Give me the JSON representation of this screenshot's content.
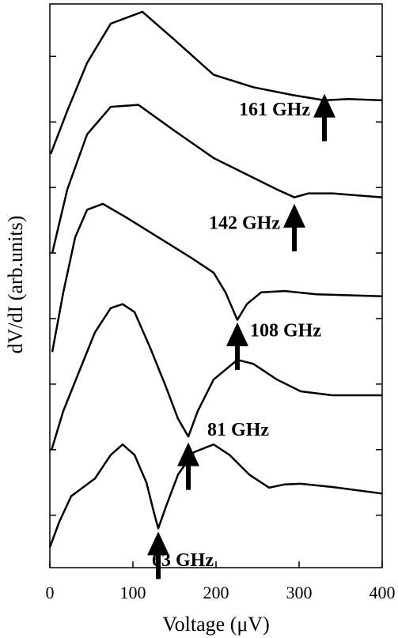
{
  "chart_data": {
    "type": "line",
    "xlabel": "Voltage (μV)",
    "ylabel": "dV/dI (arb.units)",
    "xlim": [
      0,
      400
    ],
    "xticks": [
      0,
      100,
      200,
      300,
      400
    ],
    "ylim": [
      0,
      8.6
    ],
    "yticks": [
      0.8,
      1.8,
      2.8,
      3.8,
      4.8,
      5.8,
      6.8,
      7.8
    ],
    "color": "#000000",
    "series": [
      {
        "name": "63 GHz",
        "x": [
          0,
          11.4,
          25.7,
          54.3,
          73.3,
          87.6,
          101.9,
          116.2,
          125.7,
          130.5,
          140,
          154.3,
          173.3,
          197.1,
          216.2,
          240,
          263.8,
          282.8,
          301.9,
          340,
          400
        ],
        "values": [
          0.31,
          0.7,
          1.09,
          1.36,
          1.72,
          1.88,
          1.72,
          1.3,
          0.82,
          0.6,
          0.94,
          1.42,
          1.76,
          1.88,
          1.72,
          1.42,
          1.22,
          1.27,
          1.28,
          1.23,
          1.13
        ]
      },
      {
        "name": "81 GHz",
        "x": [
          1.9,
          16.2,
          35.2,
          54.3,
          73.3,
          87.6,
          101.9,
          120.9,
          140,
          154.3,
          166.7,
          178.1,
          197.1,
          225.7,
          244.8,
          273.3,
          301.9,
          340,
          400
        ],
        "values": [
          1.79,
          2.39,
          2.99,
          3.59,
          3.96,
          4.02,
          3.9,
          3.35,
          2.75,
          2.27,
          2.0,
          2.39,
          2.87,
          3.17,
          3.11,
          2.87,
          2.69,
          2.63,
          2.63
        ]
      },
      {
        "name": "108 GHz",
        "x": [
          2.9,
          16.2,
          30.5,
          44.8,
          63.8,
          92.4,
          130.5,
          168.6,
          197.1,
          211.4,
          225.7,
          237.1,
          254.3,
          282.8,
          320.9,
          400
        ],
        "values": [
          3.29,
          4.2,
          5.04,
          5.46,
          5.55,
          5.34,
          5.04,
          4.74,
          4.5,
          4.2,
          3.78,
          4.02,
          4.2,
          4.22,
          4.17,
          4.14
        ]
      },
      {
        "name": "142 GHz",
        "x": [
          2.9,
          21,
          44.8,
          73.3,
          106.7,
          149.5,
          197.1,
          244.8,
          273.3,
          294.3,
          311.4,
          340,
          400
        ],
        "values": [
          4.8,
          5.77,
          6.61,
          7.03,
          7.06,
          6.67,
          6.25,
          5.95,
          5.77,
          5.65,
          5.71,
          5.71,
          5.65
        ]
      },
      {
        "name": "161 GHz",
        "x": [
          1,
          21,
          44.8,
          73.3,
          111.4,
          149.5,
          197.1,
          244.8,
          292.4,
          330.5,
          359,
          400
        ],
        "values": [
          6.31,
          6.97,
          7.7,
          8.3,
          8.48,
          8.06,
          7.52,
          7.33,
          7.21,
          7.13,
          7.15,
          7.13
        ]
      }
    ],
    "annotations": [
      {
        "text": "63 GHz",
        "x": 130.5,
        "y": 0.55
      },
      {
        "text": "81 GHz",
        "x": 166.7,
        "y": 1.91
      },
      {
        "text": "108 GHz",
        "x": 225.7,
        "y": 3.74
      },
      {
        "text": "142 GHz",
        "x": 294.3,
        "y": 5.55
      },
      {
        "text": "161 GHz",
        "x": 330.5,
        "y": 7.23
      }
    ]
  }
}
